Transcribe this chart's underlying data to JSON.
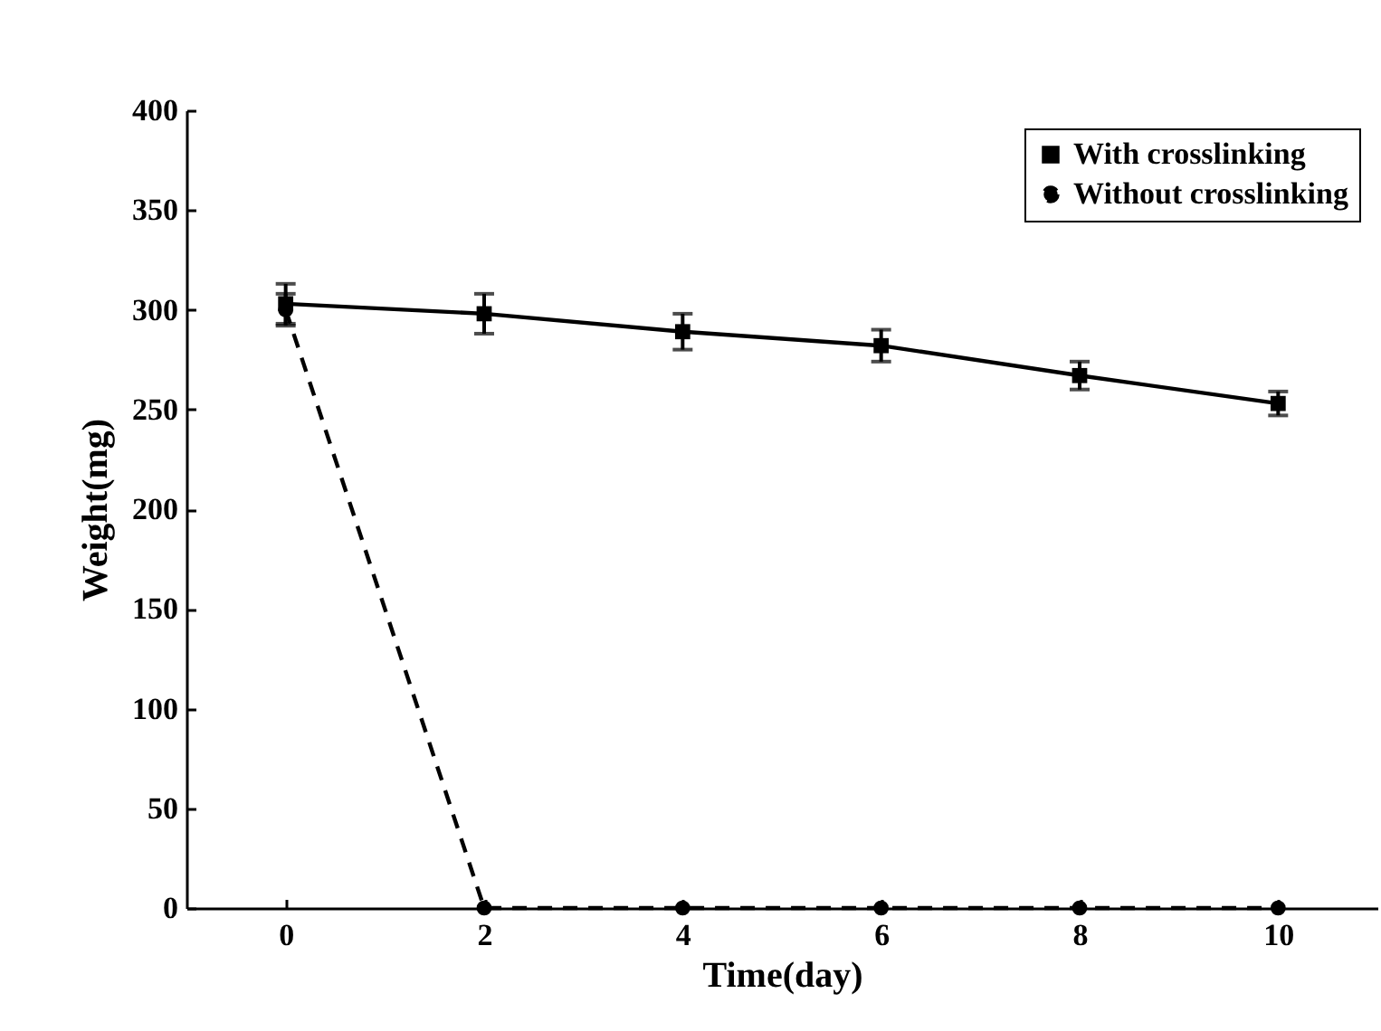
{
  "chart_data": {
    "type": "line",
    "xlabel": "Time(day)",
    "ylabel": "Weight(mg)",
    "x": [
      0,
      2,
      4,
      6,
      8,
      10
    ],
    "xlim": [
      -1,
      11
    ],
    "xticks": [
      0,
      2,
      4,
      6,
      8,
      10
    ],
    "ylim": [
      0,
      400
    ],
    "yticks": [
      0,
      50,
      100,
      150,
      200,
      250,
      300,
      350,
      400
    ],
    "grid": false,
    "legend": "top right",
    "series": [
      {
        "name": "With crosslinking",
        "color": "#000000",
        "marker": "square",
        "line_style": "solid",
        "values": [
          303,
          298,
          289,
          282,
          267,
          253
        ],
        "errors": [
          10,
          10,
          9,
          8,
          7,
          6
        ]
      },
      {
        "name": "Without crosslinking",
        "color": "#000000",
        "marker": "circle",
        "line_style": "dashed",
        "values": [
          300,
          0,
          0,
          0,
          0,
          0
        ],
        "errors": [
          8,
          null,
          null,
          null,
          null,
          null
        ]
      }
    ]
  }
}
